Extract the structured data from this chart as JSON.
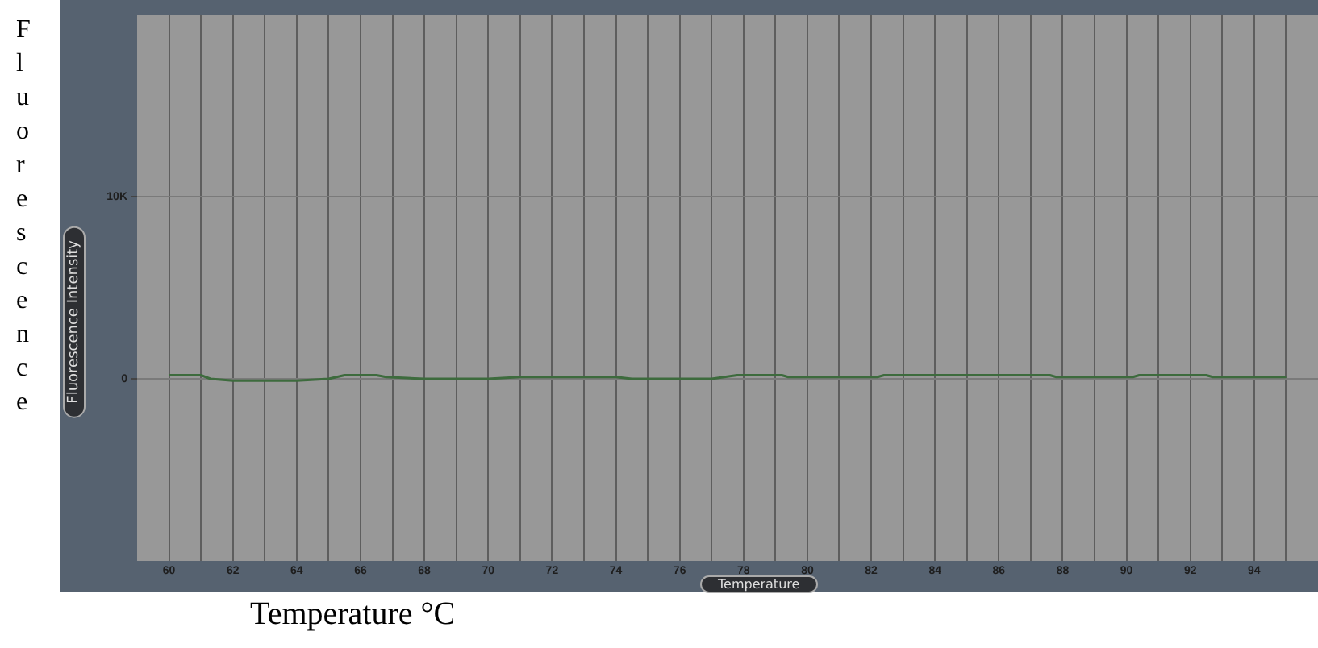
{
  "chart_data": {
    "type": "line",
    "xlabel": "Temperature",
    "ylabel": "Fluorescence Intensity",
    "annotations": [
      "Fluorescence",
      "Temperature °C"
    ],
    "xlim": [
      59,
      96
    ],
    "xticks": [
      60,
      {
        "value": 61,
        "label": null
      },
      62,
      {
        "value": 63,
        "label": null
      },
      64,
      {
        "value": 65,
        "label": null
      },
      66,
      {
        "value": 67,
        "label": null
      },
      68,
      {
        "value": 69,
        "label": null
      },
      70,
      {
        "value": 71,
        "label": null
      },
      72,
      {
        "value": 73,
        "label": null
      },
      74,
      {
        "value": 75,
        "label": null
      },
      76,
      {
        "value": 77,
        "label": null
      },
      78,
      {
        "value": 79,
        "label": null
      },
      80,
      {
        "value": 81,
        "label": null
      },
      82,
      {
        "value": 83,
        "label": null
      },
      84,
      {
        "value": 85,
        "label": null
      },
      86,
      {
        "value": 87,
        "label": null
      },
      88,
      {
        "value": 89,
        "label": null
      },
      90,
      {
        "value": 91,
        "label": null
      },
      92,
      {
        "value": 93,
        "label": null
      },
      94,
      {
        "value": 95,
        "label": null
      }
    ],
    "ylim": [
      -10000,
      20000
    ],
    "yticks": [
      0,
      {
        "value": 10000,
        "label": "10K"
      }
    ],
    "grid": true,
    "legend": false,
    "marker": "none",
    "line_style": "solid",
    "series": [
      {
        "color": "#3d6b3d",
        "x": [
          60,
          61,
          61.3,
          62,
          64,
          65,
          65.5,
          66.5,
          66.8,
          68,
          70,
          71,
          74,
          74.5,
          76,
          77,
          77.8,
          79.2,
          79.4,
          82.2,
          82.4,
          87.6,
          87.8,
          90.2,
          90.4,
          92.5,
          92.7,
          95
        ],
        "values": [
          200,
          200,
          0,
          -100,
          -100,
          0,
          200,
          200,
          100,
          0,
          0,
          100,
          100,
          0,
          0,
          0,
          200,
          200,
          100,
          100,
          200,
          200,
          100,
          100,
          200,
          200,
          100,
          100
        ]
      }
    ]
  }
}
